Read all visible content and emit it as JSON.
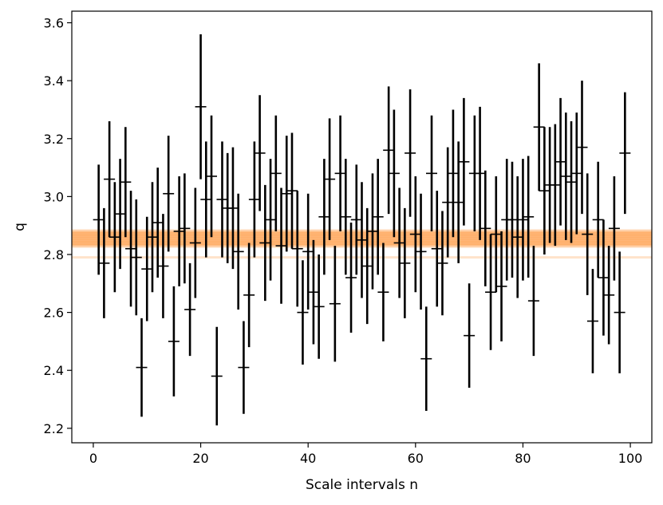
{
  "chart_data": {
    "type": "scatter",
    "title": "",
    "xlabel": "Scale intervals n",
    "ylabel": "q",
    "xlim": [
      -4,
      104
    ],
    "ylim": [
      2.15,
      3.64
    ],
    "xticks": [
      0,
      20,
      40,
      60,
      80,
      100
    ],
    "yticks": [
      2.2,
      2.4,
      2.6,
      2.8,
      3.0,
      3.2,
      3.4,
      3.6
    ],
    "grid": false,
    "legend": "none",
    "colors": {
      "points": "#000000",
      "band": "#ff7f0e"
    },
    "band": {
      "center": 2.855,
      "lines": [
        2.83,
        2.835,
        2.84,
        2.845,
        2.85,
        2.855,
        2.86,
        2.865,
        2.87,
        2.875,
        2.88
      ],
      "outlier_line": 2.79
    },
    "series": [
      {
        "marker": "errorbar",
        "x": [
          1,
          2,
          3,
          4,
          5,
          6,
          7,
          8,
          9,
          10,
          11,
          12,
          13,
          14,
          15,
          16,
          17,
          18,
          19,
          20,
          21,
          22,
          23,
          24,
          25,
          26,
          27,
          28,
          29,
          30,
          31,
          32,
          33,
          34,
          35,
          36,
          37,
          38,
          39,
          40,
          41,
          42,
          43,
          44,
          45,
          46,
          47,
          48,
          49,
          50,
          51,
          52,
          53,
          54,
          55,
          56,
          57,
          58,
          59,
          60,
          61,
          62,
          63,
          64,
          65,
          66,
          67,
          68,
          69,
          70,
          71,
          72,
          73,
          74,
          75,
          76,
          77,
          78,
          79,
          80,
          81,
          82,
          83,
          84,
          85,
          86,
          87,
          88,
          89,
          90,
          91,
          92,
          93,
          94,
          95,
          96,
          97,
          98,
          99
        ],
        "y": [
          2.92,
          2.77,
          3.06,
          2.86,
          2.94,
          3.05,
          2.82,
          2.79,
          2.41,
          2.75,
          2.86,
          2.91,
          2.76,
          3.01,
          2.5,
          2.88,
          2.89,
          2.61,
          2.84,
          3.31,
          2.99,
          3.07,
          2.38,
          2.99,
          2.96,
          2.96,
          2.81,
          2.41,
          2.66,
          2.99,
          3.15,
          2.84,
          2.92,
          3.08,
          2.83,
          3.01,
          3.02,
          2.82,
          2.6,
          2.81,
          2.67,
          2.62,
          2.93,
          3.06,
          2.63,
          3.08,
          2.93,
          2.72,
          2.92,
          2.85,
          2.76,
          2.88,
          2.93,
          2.67,
          3.16,
          3.08,
          2.84,
          2.77,
          3.15,
          2.87,
          2.81,
          2.44,
          3.08,
          2.82,
          2.77,
          2.98,
          3.08,
          2.98,
          3.12,
          2.52,
          3.08,
          3.08,
          2.89,
          2.67,
          2.87,
          2.69,
          2.92,
          2.92,
          2.86,
          2.92,
          2.93,
          2.64,
          3.24,
          3.02,
          3.04,
          3.04,
          3.12,
          3.07,
          3.05,
          3.08,
          3.17,
          2.87,
          2.57,
          2.92,
          2.72,
          2.66,
          2.89,
          2.6,
          3.15
        ],
        "err": [
          0.19,
          0.19,
          0.2,
          0.19,
          0.19,
          0.19,
          0.2,
          0.2,
          0.17,
          0.18,
          0.19,
          0.19,
          0.18,
          0.2,
          0.19,
          0.19,
          0.19,
          0.16,
          0.19,
          0.25,
          0.2,
          0.21,
          0.17,
          0.2,
          0.19,
          0.21,
          0.2,
          0.16,
          0.18,
          0.2,
          0.2,
          0.2,
          0.21,
          0.2,
          0.2,
          0.2,
          0.2,
          0.2,
          0.18,
          0.2,
          0.18,
          0.18,
          0.2,
          0.21,
          0.2,
          0.2,
          0.2,
          0.19,
          0.19,
          0.2,
          0.2,
          0.2,
          0.2,
          0.17,
          0.22,
          0.22,
          0.19,
          0.19,
          0.22,
          0.2,
          0.2,
          0.18,
          0.2,
          0.2,
          0.18,
          0.19,
          0.22,
          0.21,
          0.22,
          0.18,
          0.2,
          0.23,
          0.2,
          0.2,
          0.2,
          0.19,
          0.21,
          0.2,
          0.21,
          0.21,
          0.21,
          0.19,
          0.22,
          0.22,
          0.2,
          0.21,
          0.22,
          0.22,
          0.21,
          0.21,
          0.23,
          0.21,
          0.18,
          0.2,
          0.2,
          0.17,
          0.18,
          0.21,
          0.21
        ]
      }
    ]
  }
}
